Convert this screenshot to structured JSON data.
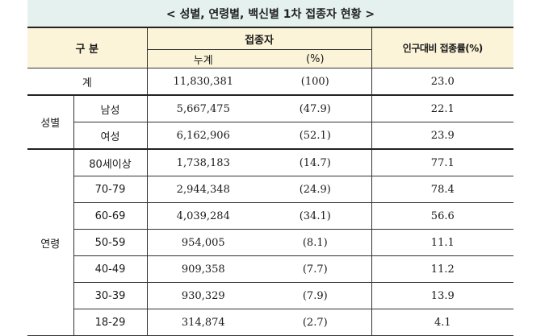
{
  "title": "< 성별, 연령별, 백신별 1차 접종자 현황 >",
  "header": {
    "category": "구 분",
    "vaccinated": "접종자",
    "cumulative": "누계",
    "percent": "(%)",
    "rate": "인구대비 접종률(%)"
  },
  "total": {
    "label": "계",
    "count": "11,830,381",
    "pct": "(100)",
    "rate": "23.0"
  },
  "sex": {
    "group": "성별",
    "rows": [
      {
        "label": "남성",
        "count": "5,667,475",
        "pct": "(47.9)",
        "rate": "22.1"
      },
      {
        "label": "여성",
        "count": "6,162,906",
        "pct": "(52.1)",
        "rate": "23.9"
      }
    ]
  },
  "age": {
    "group": "연령",
    "rows": [
      {
        "label": "80세이상",
        "count": "1,738,183",
        "pct": "(14.7)",
        "rate": "77.1"
      },
      {
        "label": "70-79",
        "count": "2,944,348",
        "pct": "(24.9)",
        "rate": "78.4"
      },
      {
        "label": "60-69",
        "count": "4,039,284",
        "pct": "(34.1)",
        "rate": "56.6"
      },
      {
        "label": "50-59",
        "count": "954,005",
        "pct": "(8.1)",
        "rate": "11.1"
      },
      {
        "label": "40-49",
        "count": "909,358",
        "pct": "(7.7)",
        "rate": "11.2"
      },
      {
        "label": "30-39",
        "count": "930,329",
        "pct": "(7.9)",
        "rate": "13.9"
      },
      {
        "label": "18-29",
        "count": "314,874",
        "pct": "(2.7)",
        "rate": "4.1"
      }
    ]
  }
}
